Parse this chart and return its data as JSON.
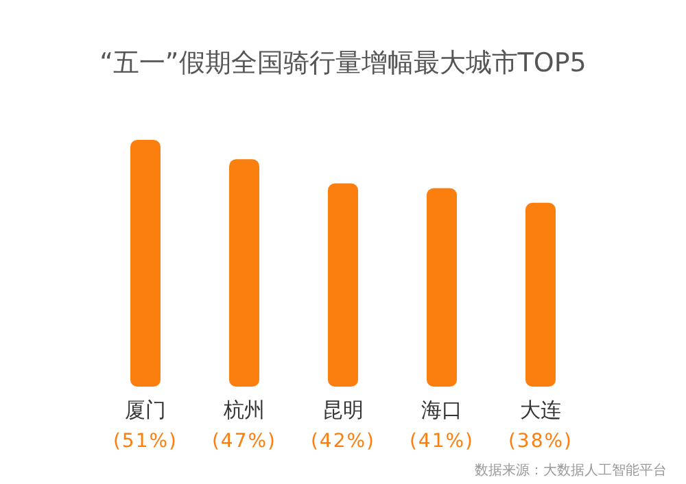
{
  "chart_data": {
    "type": "bar",
    "title": "“五一”假期全国骑行量增幅最大城市TOP5",
    "categories": [
      "厦门",
      "杭州",
      "昆明",
      "海口",
      "大连"
    ],
    "values": [
      51,
      47,
      42,
      41,
      38
    ],
    "value_labels": [
      "(51%)",
      "(47%)",
      "(42%)",
      "(41%)",
      "(38%)"
    ],
    "color": "#fb7f0f",
    "annotations": [
      "数据来源：大数据人工智能平台"
    ]
  }
}
